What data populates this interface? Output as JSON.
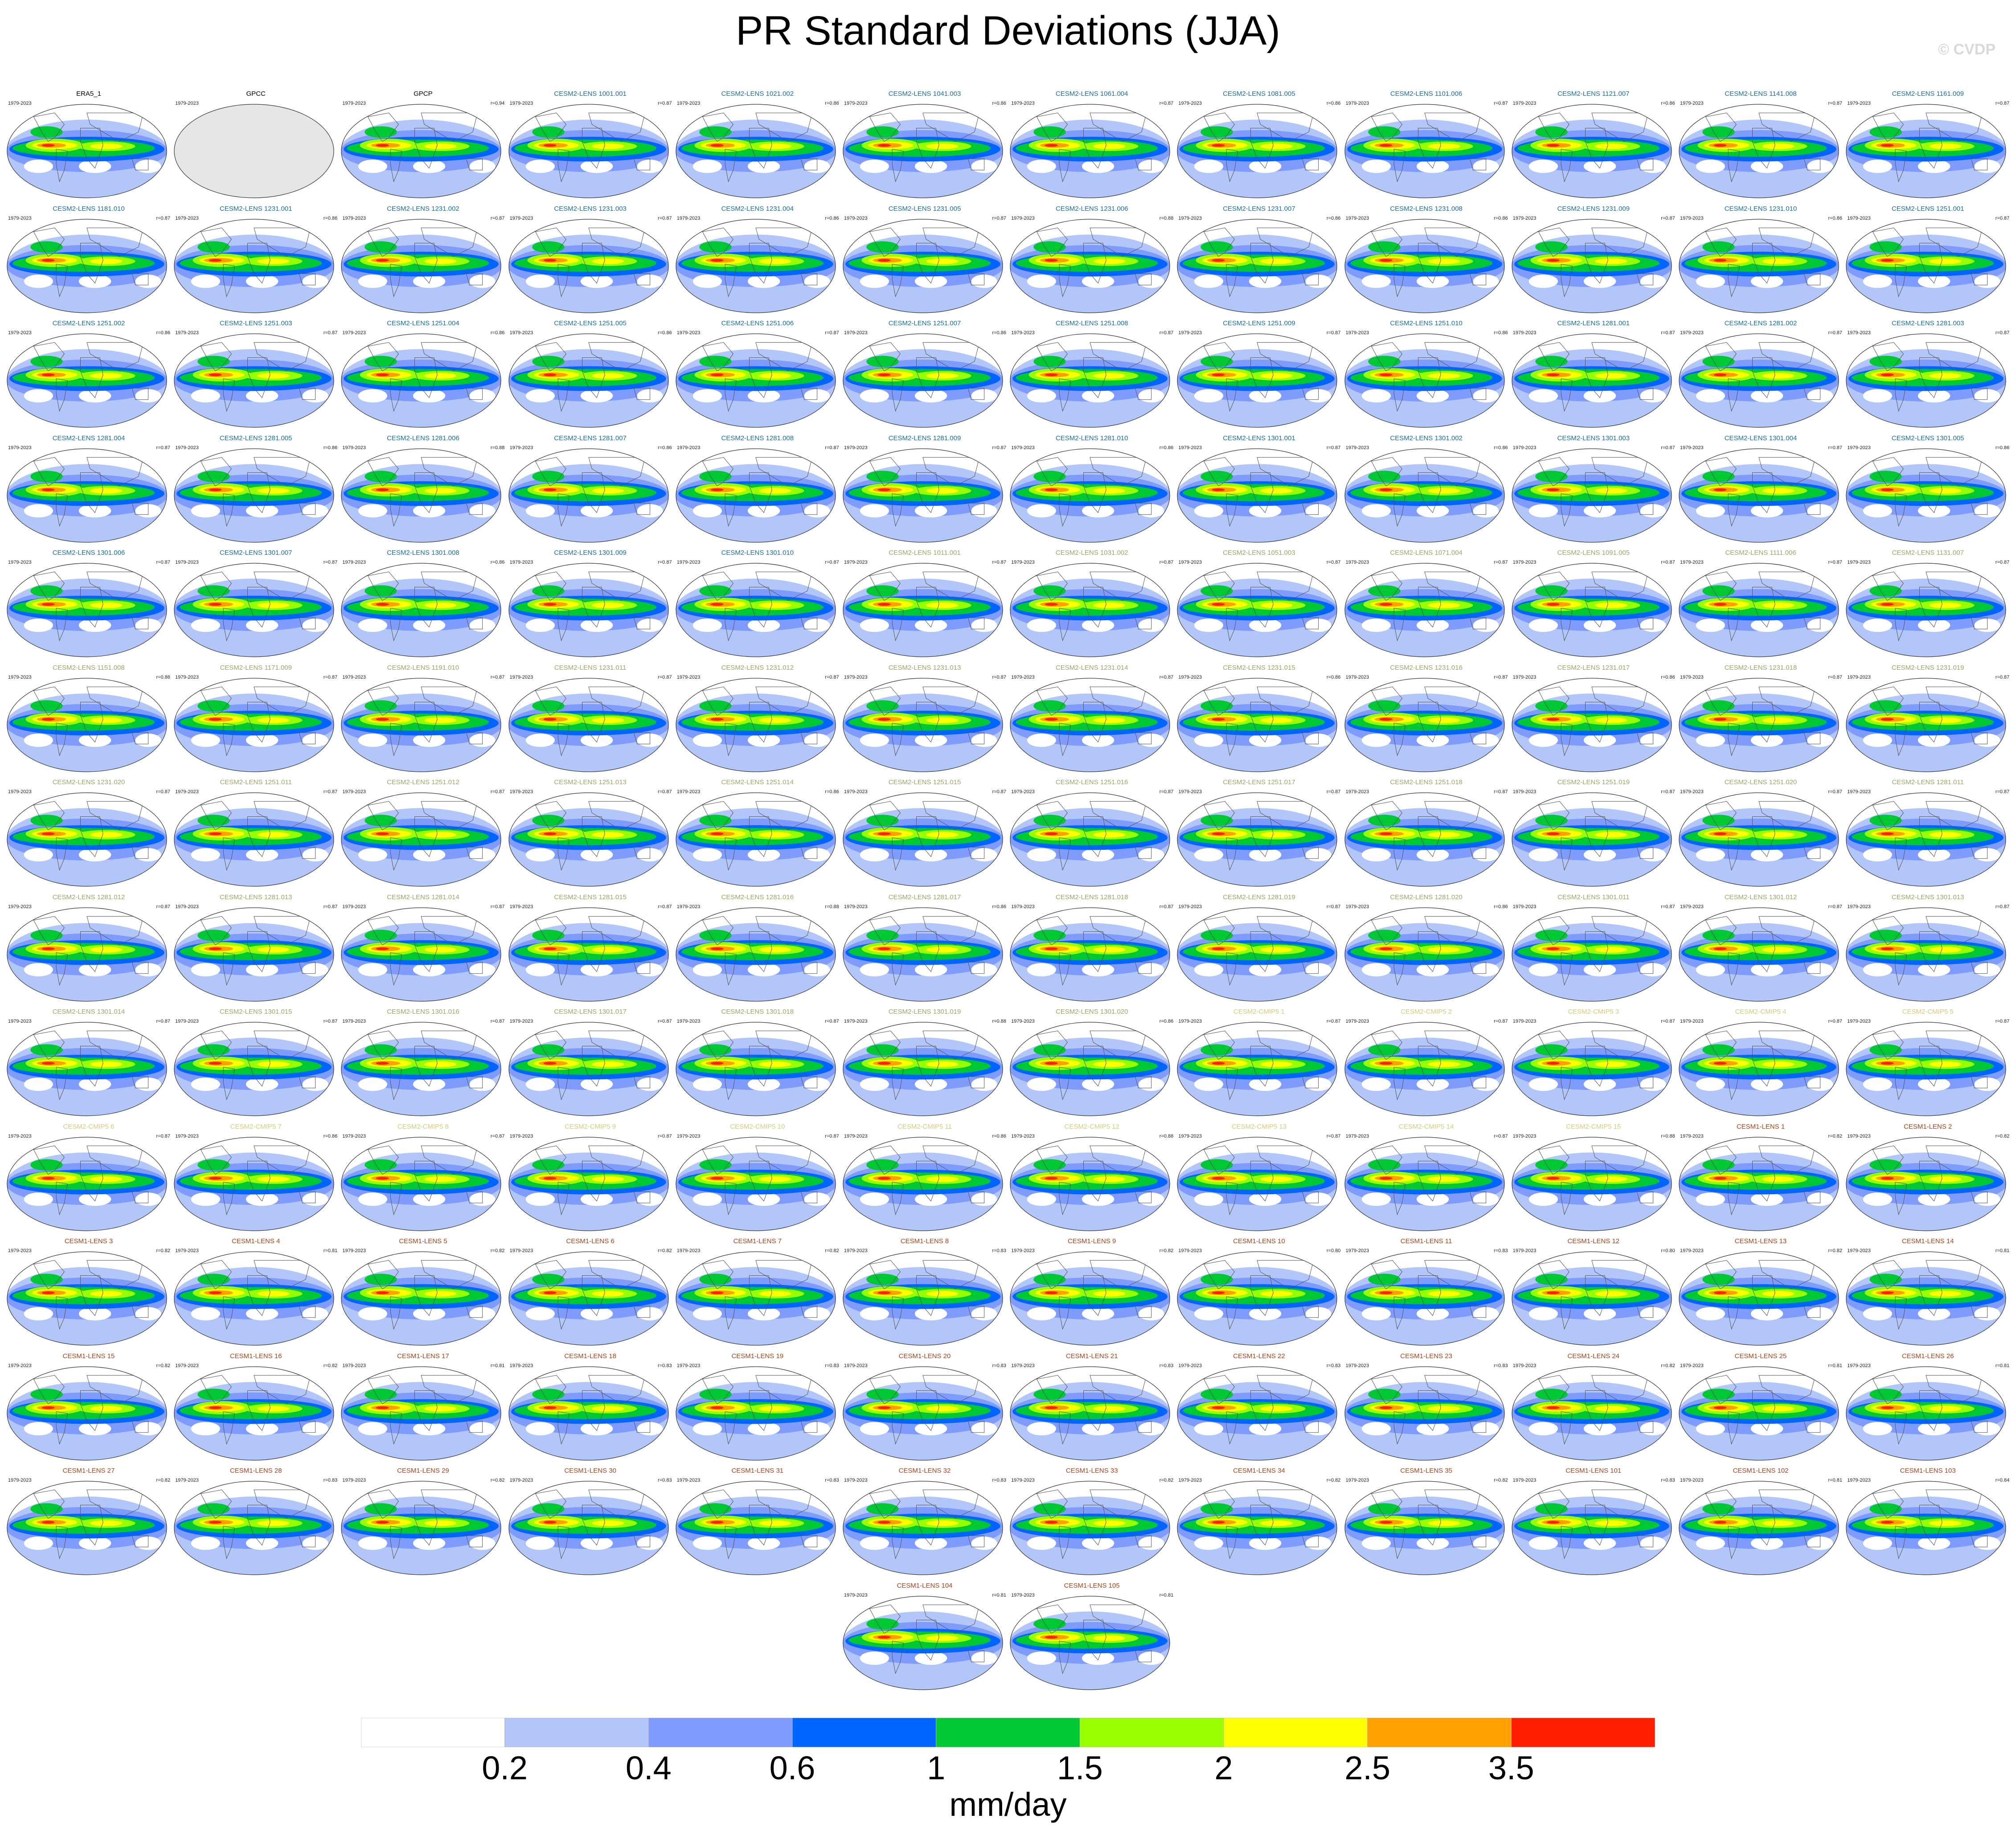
{
  "title": "PR Standard Deviations (JJA)",
  "copyright": "© CVDP",
  "colorbar": {
    "colors": [
      "#ffffff",
      "#b3c6fa",
      "#7f9bfb",
      "#0064ff",
      "#00c832",
      "#96ff00",
      "#ffff00",
      "#ffa000",
      "#ff1e00"
    ],
    "tick_labels": [
      "0.2",
      "0.4",
      "0.6",
      "1",
      "1.5",
      "2",
      "2.5",
      "3.5"
    ],
    "units": "mm/day"
  },
  "panel_colors": {
    "obs": "#000000",
    "cesm2_a": "#1a6f9e",
    "cesm2_b": "#9aa86a",
    "cesm2_cmip5": "#d4cd7a",
    "cesm1": "#a8431a"
  },
  "panels": [
    {
      "name": "ERA5_1",
      "years": "1979-2023",
      "r": "",
      "group": "obs"
    },
    {
      "name": "GPCC",
      "years": "1979-2023",
      "r": "",
      "group": "obs",
      "empty": true
    },
    {
      "name": "GPCP",
      "years": "1979-2023",
      "r": "r=0.94",
      "group": "obs"
    },
    {
      "name": "CESM2-LENS 1001.001",
      "years": "1979-2023",
      "r": "r=0.87",
      "group": "cesm2_a"
    },
    {
      "name": "CESM2-LENS 1021.002",
      "years": "1979-2023",
      "r": "r=0.86",
      "group": "cesm2_a"
    },
    {
      "name": "CESM2-LENS 1041.003",
      "years": "1979-2023",
      "r": "r=0.86",
      "group": "cesm2_a"
    },
    {
      "name": "CESM2-LENS 1061.004",
      "years": "1979-2023",
      "r": "r=0.87",
      "group": "cesm2_a"
    },
    {
      "name": "CESM2-LENS 1081.005",
      "years": "1979-2023",
      "r": "r=0.86",
      "group": "cesm2_a"
    },
    {
      "name": "CESM2-LENS 1101.006",
      "years": "1979-2023",
      "r": "r=0.87",
      "group": "cesm2_a"
    },
    {
      "name": "CESM2-LENS 1121.007",
      "years": "1979-2023",
      "r": "r=0.86",
      "group": "cesm2_a"
    },
    {
      "name": "CESM2-LENS 1141.008",
      "years": "1979-2023",
      "r": "r=0.87",
      "group": "cesm2_a"
    },
    {
      "name": "CESM2-LENS 1161.009",
      "years": "1979-2023",
      "r": "r=0.87",
      "group": "cesm2_a"
    },
    {
      "name": "CESM2-LENS 1181.010",
      "years": "1979-2023",
      "r": "r=0.87",
      "group": "cesm2_a"
    },
    {
      "name": "CESM2-LENS 1231.001",
      "years": "1979-2023",
      "r": "r=0.86",
      "group": "cesm2_a"
    },
    {
      "name": "CESM2-LENS 1231.002",
      "years": "1979-2023",
      "r": "r=0.87",
      "group": "cesm2_a"
    },
    {
      "name": "CESM2-LENS 1231.003",
      "years": "1979-2023",
      "r": "r=0.87",
      "group": "cesm2_a"
    },
    {
      "name": "CESM2-LENS 1231.004",
      "years": "1979-2023",
      "r": "r=0.86",
      "group": "cesm2_a"
    },
    {
      "name": "CESM2-LENS 1231.005",
      "years": "1979-2023",
      "r": "r=0.87",
      "group": "cesm2_a"
    },
    {
      "name": "CESM2-LENS 1231.006",
      "years": "1979-2023",
      "r": "r=0.88",
      "group": "cesm2_a"
    },
    {
      "name": "CESM2-LENS 1231.007",
      "years": "1979-2023",
      "r": "r=0.86",
      "group": "cesm2_a"
    },
    {
      "name": "CESM2-LENS 1231.008",
      "years": "1979-2023",
      "r": "r=0.86",
      "group": "cesm2_a"
    },
    {
      "name": "CESM2-LENS 1231.009",
      "years": "1979-2023",
      "r": "r=0.87",
      "group": "cesm2_a"
    },
    {
      "name": "CESM2-LENS 1231.010",
      "years": "1979-2023",
      "r": "r=0.86",
      "group": "cesm2_a"
    },
    {
      "name": "CESM2-LENS 1251.001",
      "years": "1979-2023",
      "r": "r=0.87",
      "group": "cesm2_a"
    },
    {
      "name": "CESM2-LENS 1251.002",
      "years": "1979-2023",
      "r": "r=0.86",
      "group": "cesm2_a"
    },
    {
      "name": "CESM2-LENS 1251.003",
      "years": "1979-2023",
      "r": "r=0.87",
      "group": "cesm2_a"
    },
    {
      "name": "CESM2-LENS 1251.004",
      "years": "1979-2023",
      "r": "r=0.86",
      "group": "cesm2_a"
    },
    {
      "name": "CESM2-LENS 1251.005",
      "years": "1979-2023",
      "r": "r=0.86",
      "group": "cesm2_a"
    },
    {
      "name": "CESM2-LENS 1251.006",
      "years": "1979-2023",
      "r": "r=0.87",
      "group": "cesm2_a"
    },
    {
      "name": "CESM2-LENS 1251.007",
      "years": "1979-2023",
      "r": "r=0.86",
      "group": "cesm2_a"
    },
    {
      "name": "CESM2-LENS 1251.008",
      "years": "1979-2023",
      "r": "r=0.87",
      "group": "cesm2_a"
    },
    {
      "name": "CESM2-LENS 1251.009",
      "years": "1979-2023",
      "r": "r=0.87",
      "group": "cesm2_a"
    },
    {
      "name": "CESM2-LENS 1251.010",
      "years": "1979-2023",
      "r": "r=0.86",
      "group": "cesm2_a"
    },
    {
      "name": "CESM2-LENS 1281.001",
      "years": "1979-2023",
      "r": "r=0.87",
      "group": "cesm2_a"
    },
    {
      "name": "CESM2-LENS 1281.002",
      "years": "1979-2023",
      "r": "r=0.87",
      "group": "cesm2_a"
    },
    {
      "name": "CESM2-LENS 1281.003",
      "years": "1979-2023",
      "r": "r=0.87",
      "group": "cesm2_a"
    },
    {
      "name": "CESM2-LENS 1281.004",
      "years": "1979-2023",
      "r": "r=0.87",
      "group": "cesm2_a"
    },
    {
      "name": "CESM2-LENS 1281.005",
      "years": "1979-2023",
      "r": "r=0.86",
      "group": "cesm2_a"
    },
    {
      "name": "CESM2-LENS 1281.006",
      "years": "1979-2023",
      "r": "r=0.88",
      "group": "cesm2_a"
    },
    {
      "name": "CESM2-LENS 1281.007",
      "years": "1979-2023",
      "r": "r=0.86",
      "group": "cesm2_a"
    },
    {
      "name": "CESM2-LENS 1281.008",
      "years": "1979-2023",
      "r": "r=0.87",
      "group": "cesm2_a"
    },
    {
      "name": "CESM2-LENS 1281.009",
      "years": "1979-2023",
      "r": "r=0.87",
      "group": "cesm2_a"
    },
    {
      "name": "CESM2-LENS 1281.010",
      "years": "1979-2023",
      "r": "r=0.86",
      "group": "cesm2_a"
    },
    {
      "name": "CESM2-LENS 1301.001",
      "years": "1979-2023",
      "r": "r=0.87",
      "group": "cesm2_a"
    },
    {
      "name": "CESM2-LENS 1301.002",
      "years": "1979-2023",
      "r": "r=0.86",
      "group": "cesm2_a"
    },
    {
      "name": "CESM2-LENS 1301.003",
      "years": "1979-2023",
      "r": "r=0.87",
      "group": "cesm2_a"
    },
    {
      "name": "CESM2-LENS 1301.004",
      "years": "1979-2023",
      "r": "r=0.87",
      "group": "cesm2_a"
    },
    {
      "name": "CESM2-LENS 1301.005",
      "years": "1979-2023",
      "r": "r=0.86",
      "group": "cesm2_a"
    },
    {
      "name": "CESM2-LENS 1301.006",
      "years": "1979-2023",
      "r": "r=0.87",
      "group": "cesm2_a"
    },
    {
      "name": "CESM2-LENS 1301.007",
      "years": "1979-2023",
      "r": "r=0.87",
      "group": "cesm2_a"
    },
    {
      "name": "CESM2-LENS 1301.008",
      "years": "1979-2023",
      "r": "r=0.86",
      "group": "cesm2_a"
    },
    {
      "name": "CESM2-LENS 1301.009",
      "years": "1979-2023",
      "r": "r=0.87",
      "group": "cesm2_a"
    },
    {
      "name": "CESM2-LENS 1301.010",
      "years": "1979-2023",
      "r": "r=0.87",
      "group": "cesm2_a"
    },
    {
      "name": "CESM2-LENS 1011.001",
      "years": "1979-2023",
      "r": "r=0.87",
      "group": "cesm2_b"
    },
    {
      "name": "CESM2-LENS 1031.002",
      "years": "1979-2023",
      "r": "r=0.87",
      "group": "cesm2_b"
    },
    {
      "name": "CESM2-LENS 1051.003",
      "years": "1979-2023",
      "r": "r=0.87",
      "group": "cesm2_b"
    },
    {
      "name": "CESM2-LENS 1071.004",
      "years": "1979-2023",
      "r": "r=0.87",
      "group": "cesm2_b"
    },
    {
      "name": "CESM2-LENS 1091.005",
      "years": "1979-2023",
      "r": "r=0.87",
      "group": "cesm2_b"
    },
    {
      "name": "CESM2-LENS 1111.006",
      "years": "1979-2023",
      "r": "r=0.87",
      "group": "cesm2_b"
    },
    {
      "name": "CESM2-LENS 1131.007",
      "years": "1979-2023",
      "r": "r=0.87",
      "group": "cesm2_b"
    },
    {
      "name": "CESM2-LENS 1151.008",
      "years": "1979-2023",
      "r": "r=0.86",
      "group": "cesm2_b"
    },
    {
      "name": "CESM2-LENS 1171.009",
      "years": "1979-2023",
      "r": "r=0.87",
      "group": "cesm2_b"
    },
    {
      "name": "CESM2-LENS 1191.010",
      "years": "1979-2023",
      "r": "r=0.87",
      "group": "cesm2_b"
    },
    {
      "name": "CESM2-LENS 1231.011",
      "years": "1979-2023",
      "r": "r=0.87",
      "group": "cesm2_b"
    },
    {
      "name": "CESM2-LENS 1231.012",
      "years": "1979-2023",
      "r": "r=0.87",
      "group": "cesm2_b"
    },
    {
      "name": "CESM2-LENS 1231.013",
      "years": "1979-2023",
      "r": "r=0.87",
      "group": "cesm2_b"
    },
    {
      "name": "CESM2-LENS 1231.014",
      "years": "1979-2023",
      "r": "r=0.87",
      "group": "cesm2_b"
    },
    {
      "name": "CESM2-LENS 1231.015",
      "years": "1979-2023",
      "r": "r=0.86",
      "group": "cesm2_b"
    },
    {
      "name": "CESM2-LENS 1231.016",
      "years": "1979-2023",
      "r": "r=0.87",
      "group": "cesm2_b"
    },
    {
      "name": "CESM2-LENS 1231.017",
      "years": "1979-2023",
      "r": "r=0.86",
      "group": "cesm2_b"
    },
    {
      "name": "CESM2-LENS 1231.018",
      "years": "1979-2023",
      "r": "r=0.87",
      "group": "cesm2_b"
    },
    {
      "name": "CESM2-LENS 1231.019",
      "years": "1979-2023",
      "r": "r=0.87",
      "group": "cesm2_b"
    },
    {
      "name": "CESM2-LENS 1231.020",
      "years": "1979-2023",
      "r": "r=0.87",
      "group": "cesm2_b"
    },
    {
      "name": "CESM2-LENS 1251.011",
      "years": "1979-2023",
      "r": "r=0.87",
      "group": "cesm2_b"
    },
    {
      "name": "CESM2-LENS 1251.012",
      "years": "1979-2023",
      "r": "r=0.87",
      "group": "cesm2_b"
    },
    {
      "name": "CESM2-LENS 1251.013",
      "years": "1979-2023",
      "r": "r=0.87",
      "group": "cesm2_b"
    },
    {
      "name": "CESM2-LENS 1251.014",
      "years": "1979-2023",
      "r": "r=0.86",
      "group": "cesm2_b"
    },
    {
      "name": "CESM2-LENS 1251.015",
      "years": "1979-2023",
      "r": "r=0.87",
      "group": "cesm2_b"
    },
    {
      "name": "CESM2-LENS 1251.016",
      "years": "1979-2023",
      "r": "r=0.87",
      "group": "cesm2_b"
    },
    {
      "name": "CESM2-LENS 1251.017",
      "years": "1979-2023",
      "r": "r=0.87",
      "group": "cesm2_b"
    },
    {
      "name": "CESM2-LENS 1251.018",
      "years": "1979-2023",
      "r": "r=0.87",
      "group": "cesm2_b"
    },
    {
      "name": "CESM2-LENS 1251.019",
      "years": "1979-2023",
      "r": "r=0.87",
      "group": "cesm2_b"
    },
    {
      "name": "CESM2-LENS 1251.020",
      "years": "1979-2023",
      "r": "r=0.87",
      "group": "cesm2_b"
    },
    {
      "name": "CESM2-LENS 1281.011",
      "years": "1979-2023",
      "r": "r=0.87",
      "group": "cesm2_b"
    },
    {
      "name": "CESM2-LENS 1281.012",
      "years": "1979-2023",
      "r": "r=0.87",
      "group": "cesm2_b"
    },
    {
      "name": "CESM2-LENS 1281.013",
      "years": "1979-2023",
      "r": "r=0.87",
      "group": "cesm2_b"
    },
    {
      "name": "CESM2-LENS 1281.014",
      "years": "1979-2023",
      "r": "r=0.87",
      "group": "cesm2_b"
    },
    {
      "name": "CESM2-LENS 1281.015",
      "years": "1979-2023",
      "r": "r=0.87",
      "group": "cesm2_b"
    },
    {
      "name": "CESM2-LENS 1281.016",
      "years": "1979-2023",
      "r": "r=0.88",
      "group": "cesm2_b"
    },
    {
      "name": "CESM2-LENS 1281.017",
      "years": "1979-2023",
      "r": "r=0.86",
      "group": "cesm2_b"
    },
    {
      "name": "CESM2-LENS 1281.018",
      "years": "1979-2023",
      "r": "r=0.87",
      "group": "cesm2_b"
    },
    {
      "name": "CESM2-LENS 1281.019",
      "years": "1979-2023",
      "r": "r=0.87",
      "group": "cesm2_b"
    },
    {
      "name": "CESM2-LENS 1281.020",
      "years": "1979-2023",
      "r": "r=0.86",
      "group": "cesm2_b"
    },
    {
      "name": "CESM2-LENS 1301.011",
      "years": "1979-2023",
      "r": "r=0.87",
      "group": "cesm2_b"
    },
    {
      "name": "CESM2-LENS 1301.012",
      "years": "1979-2023",
      "r": "r=0.87",
      "group": "cesm2_b"
    },
    {
      "name": "CESM2-LENS 1301.013",
      "years": "1979-2023",
      "r": "r=0.87",
      "group": "cesm2_b"
    },
    {
      "name": "CESM2-LENS 1301.014",
      "years": "1979-2023",
      "r": "r=0.87",
      "group": "cesm2_b"
    },
    {
      "name": "CESM2-LENS 1301.015",
      "years": "1979-2023",
      "r": "r=0.87",
      "group": "cesm2_b"
    },
    {
      "name": "CESM2-LENS 1301.016",
      "years": "1979-2023",
      "r": "r=0.87",
      "group": "cesm2_b"
    },
    {
      "name": "CESM2-LENS 1301.017",
      "years": "1979-2023",
      "r": "r=0.87",
      "group": "cesm2_b"
    },
    {
      "name": "CESM2-LENS 1301.018",
      "years": "1979-2023",
      "r": "r=0.87",
      "group": "cesm2_b"
    },
    {
      "name": "CESM2-LENS 1301.019",
      "years": "1979-2023",
      "r": "r=0.88",
      "group": "cesm2_b"
    },
    {
      "name": "CESM2-LENS 1301.020",
      "years": "1979-2023",
      "r": "r=0.86",
      "group": "cesm2_b"
    },
    {
      "name": "CESM2-CMIP5 1",
      "years": "1979-2023",
      "r": "r=0.87",
      "group": "cesm2_cmip5"
    },
    {
      "name": "CESM2-CMIP5 2",
      "years": "1979-2023",
      "r": "r=0.87",
      "group": "cesm2_cmip5"
    },
    {
      "name": "CESM2-CMIP5 3",
      "years": "1979-2023",
      "r": "r=0.87",
      "group": "cesm2_cmip5"
    },
    {
      "name": "CESM2-CMIP5 4",
      "years": "1979-2023",
      "r": "r=0.87",
      "group": "cesm2_cmip5"
    },
    {
      "name": "CESM2-CMIP5 5",
      "years": "1979-2023",
      "r": "r=0.87",
      "group": "cesm2_cmip5"
    },
    {
      "name": "CESM2-CMIP5 6",
      "years": "1979-2023",
      "r": "r=0.87",
      "group": "cesm2_cmip5"
    },
    {
      "name": "CESM2-CMIP5 7",
      "years": "1979-2023",
      "r": "r=0.86",
      "group": "cesm2_cmip5"
    },
    {
      "name": "CESM2-CMIP5 8",
      "years": "1979-2023",
      "r": "r=0.87",
      "group": "cesm2_cmip5"
    },
    {
      "name": "CESM2-CMIP5 9",
      "years": "1979-2023",
      "r": "r=0.87",
      "group": "cesm2_cmip5"
    },
    {
      "name": "CESM2-CMIP5 10",
      "years": "1979-2023",
      "r": "r=0.87",
      "group": "cesm2_cmip5"
    },
    {
      "name": "CESM2-CMIP5 11",
      "years": "1979-2023",
      "r": "r=0.86",
      "group": "cesm2_cmip5"
    },
    {
      "name": "CESM2-CMIP5 12",
      "years": "1979-2023",
      "r": "r=0.88",
      "group": "cesm2_cmip5"
    },
    {
      "name": "CESM2-CMIP5 13",
      "years": "1979-2023",
      "r": "r=0.87",
      "group": "cesm2_cmip5"
    },
    {
      "name": "CESM2-CMIP5 14",
      "years": "1979-2023",
      "r": "r=0.87",
      "group": "cesm2_cmip5"
    },
    {
      "name": "CESM2-CMIP5 15",
      "years": "1979-2023",
      "r": "r=0.88",
      "group": "cesm2_cmip5"
    },
    {
      "name": "CESM1-LENS 1",
      "years": "1979-2023",
      "r": "r=0.82",
      "group": "cesm1"
    },
    {
      "name": "CESM1-LENS 2",
      "years": "1979-2023",
      "r": "r=0.82",
      "group": "cesm1"
    },
    {
      "name": "CESM1-LENS 3",
      "years": "1979-2023",
      "r": "r=0.82",
      "group": "cesm1"
    },
    {
      "name": "CESM1-LENS 4",
      "years": "1979-2023",
      "r": "r=0.81",
      "group": "cesm1"
    },
    {
      "name": "CESM1-LENS 5",
      "years": "1979-2023",
      "r": "r=0.82",
      "group": "cesm1"
    },
    {
      "name": "CESM1-LENS 6",
      "years": "1979-2023",
      "r": "r=0.82",
      "group": "cesm1"
    },
    {
      "name": "CESM1-LENS 7",
      "years": "1979-2023",
      "r": "r=0.82",
      "group": "cesm1"
    },
    {
      "name": "CESM1-LENS 8",
      "years": "1979-2023",
      "r": "r=0.83",
      "group": "cesm1"
    },
    {
      "name": "CESM1-LENS 9",
      "years": "1979-2023",
      "r": "r=0.82",
      "group": "cesm1"
    },
    {
      "name": "CESM1-LENS 10",
      "years": "1979-2023",
      "r": "r=0.80",
      "group": "cesm1"
    },
    {
      "name": "CESM1-LENS 11",
      "years": "1979-2023",
      "r": "r=0.83",
      "group": "cesm1"
    },
    {
      "name": "CESM1-LENS 12",
      "years": "1979-2023",
      "r": "r=0.80",
      "group": "cesm1"
    },
    {
      "name": "CESM1-LENS 13",
      "years": "1979-2023",
      "r": "r=0.82",
      "group": "cesm1"
    },
    {
      "name": "CESM1-LENS 14",
      "years": "1979-2023",
      "r": "r=0.81",
      "group": "cesm1"
    },
    {
      "name": "CESM1-LENS 15",
      "years": "1979-2023",
      "r": "r=0.82",
      "group": "cesm1"
    },
    {
      "name": "CESM1-LENS 16",
      "years": "1979-2023",
      "r": "r=0.82",
      "group": "cesm1"
    },
    {
      "name": "CESM1-LENS 17",
      "years": "1979-2023",
      "r": "r=0.81",
      "group": "cesm1"
    },
    {
      "name": "CESM1-LENS 18",
      "years": "1979-2023",
      "r": "r=0.83",
      "group": "cesm1"
    },
    {
      "name": "CESM1-LENS 19",
      "years": "1979-2023",
      "r": "r=0.83",
      "group": "cesm1"
    },
    {
      "name": "CESM1-LENS 20",
      "years": "1979-2023",
      "r": "r=0.83",
      "group": "cesm1"
    },
    {
      "name": "CESM1-LENS 21",
      "years": "1979-2023",
      "r": "r=0.83",
      "group": "cesm1"
    },
    {
      "name": "CESM1-LENS 22",
      "years": "1979-2023",
      "r": "r=0.83",
      "group": "cesm1"
    },
    {
      "name": "CESM1-LENS 23",
      "years": "1979-2023",
      "r": "r=0.83",
      "group": "cesm1"
    },
    {
      "name": "CESM1-LENS 24",
      "years": "1979-2023",
      "r": "r=0.82",
      "group": "cesm1"
    },
    {
      "name": "CESM1-LENS 25",
      "years": "1979-2023",
      "r": "r=0.81",
      "group": "cesm1"
    },
    {
      "name": "CESM1-LENS 26",
      "years": "1979-2023",
      "r": "r=0.81",
      "group": "cesm1"
    },
    {
      "name": "CESM1-LENS 27",
      "years": "1979-2023",
      "r": "r=0.82",
      "group": "cesm1"
    },
    {
      "name": "CESM1-LENS 28",
      "years": "1979-2023",
      "r": "r=0.83",
      "group": "cesm1"
    },
    {
      "name": "CESM1-LENS 29",
      "years": "1979-2023",
      "r": "r=0.82",
      "group": "cesm1"
    },
    {
      "name": "CESM1-LENS 30",
      "years": "1979-2023",
      "r": "r=0.83",
      "group": "cesm1"
    },
    {
      "name": "CESM1-LENS 31",
      "years": "1979-2023",
      "r": "r=0.83",
      "group": "cesm1"
    },
    {
      "name": "CESM1-LENS 32",
      "years": "1979-2023",
      "r": "r=0.83",
      "group": "cesm1"
    },
    {
      "name": "CESM1-LENS 33",
      "years": "1979-2023",
      "r": "r=0.82",
      "group": "cesm1"
    },
    {
      "name": "CESM1-LENS 34",
      "years": "1979-2023",
      "r": "r=0.82",
      "group": "cesm1"
    },
    {
      "name": "CESM1-LENS 35",
      "years": "1979-2023",
      "r": "r=0.82",
      "group": "cesm1"
    },
    {
      "name": "CESM1-LENS 101",
      "years": "1979-2023",
      "r": "r=0.83",
      "group": "cesm1"
    },
    {
      "name": "CESM1-LENS 102",
      "years": "1979-2023",
      "r": "r=0.81",
      "group": "cesm1"
    },
    {
      "name": "CESM1-LENS 103",
      "years": "1979-2023",
      "r": "r=0.84",
      "group": "cesm1"
    },
    {
      "name": "CESM1-LENS 104",
      "years": "1979-2023",
      "r": "r=0.81",
      "group": "cesm1"
    },
    {
      "name": "CESM1-LENS 105",
      "years": "1979-2023",
      "r": "r=0.81",
      "group": "cesm1"
    }
  ]
}
